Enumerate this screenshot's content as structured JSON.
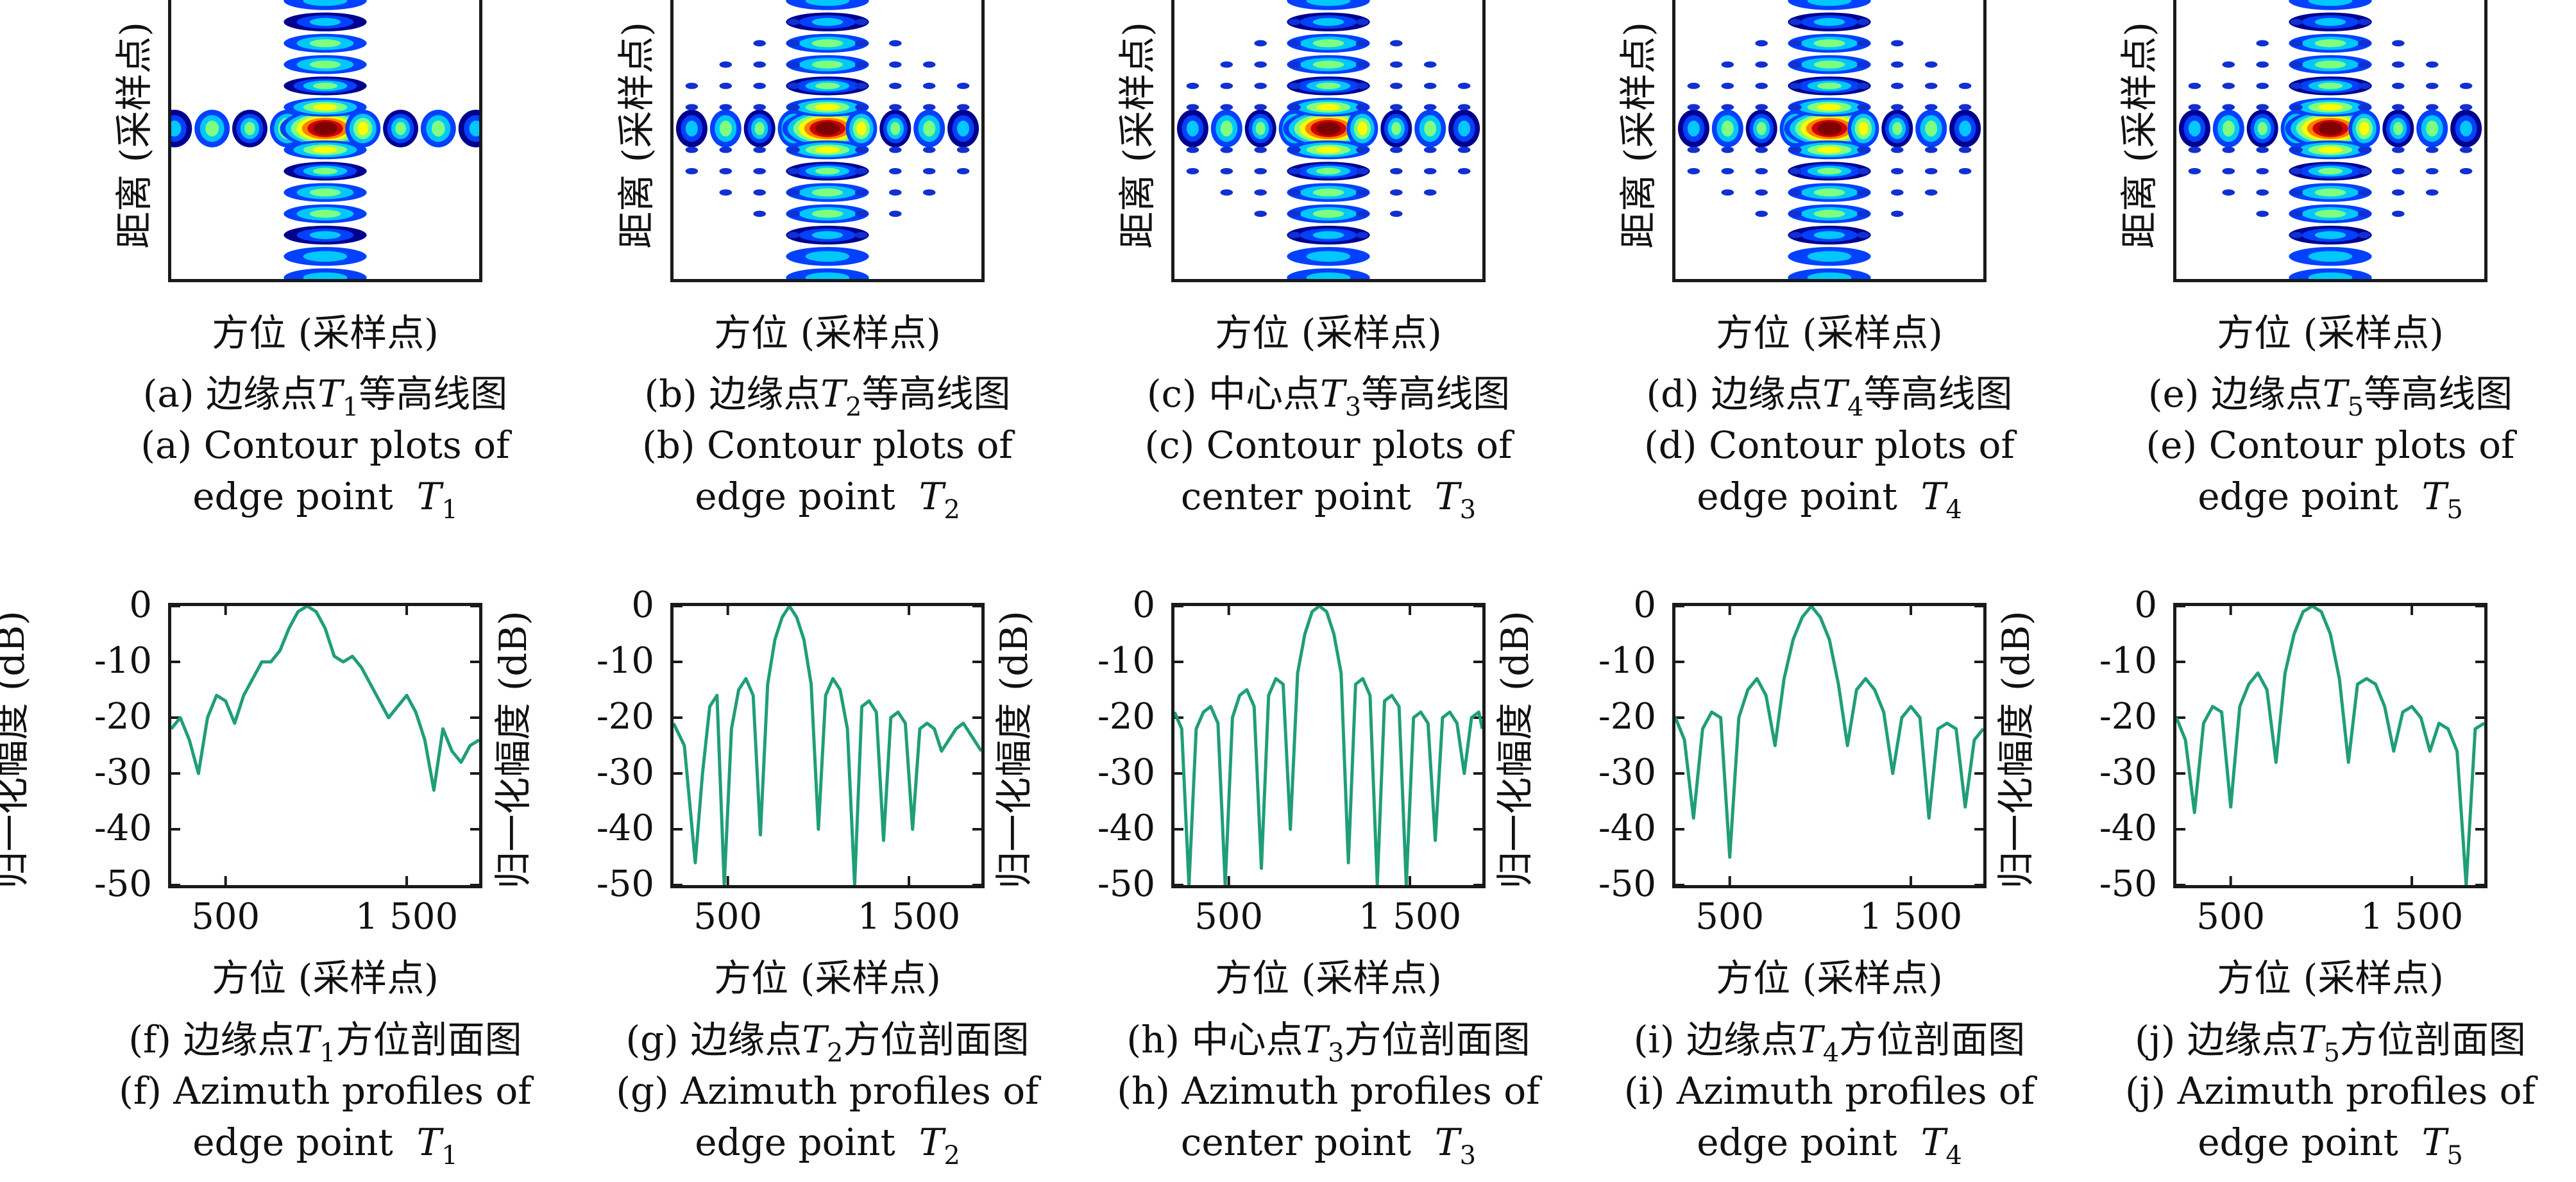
{
  "chart_data": [
    {
      "type": "heatmap",
      "panel": "a",
      "xlabel": "方位 (采样点)",
      "ylabel": "距离 (采样点)",
      "caption_cn": "(a) 边缘点",
      "caption_cn_sym": "T",
      "caption_cn_sub": "1",
      "caption_cn_tail": "等高线图",
      "caption_en_1": "(a) Contour plots of",
      "caption_en_2": "edge point",
      "caption_en_sym": "T",
      "caption_en_sub": "1",
      "colormap": [
        "#00008f",
        "#0040ff",
        "#00c8ff",
        "#7fff7f",
        "#ffff00",
        "#ff7f00",
        "#d00000",
        "#7f0000"
      ]
    },
    {
      "type": "heatmap",
      "panel": "b",
      "xlabel": "方位 (采样点)",
      "ylabel": "距离 (采样点)",
      "caption_cn": "(b) 边缘点",
      "caption_cn_sym": "T",
      "caption_cn_sub": "2",
      "caption_cn_tail": "等高线图",
      "caption_en_1": "(b) Contour plots of",
      "caption_en_2": "edge point",
      "caption_en_sym": "T",
      "caption_en_sub": "2"
    },
    {
      "type": "heatmap",
      "panel": "c",
      "xlabel": "方位 (采样点)",
      "ylabel": "距离 (采样点)",
      "caption_cn": "(c) 中心点",
      "caption_cn_sym": "T",
      "caption_cn_sub": "3",
      "caption_cn_tail": "等高线图",
      "caption_en_1": "(c) Contour plots of",
      "caption_en_2": "center point",
      "caption_en_sym": "T",
      "caption_en_sub": "3"
    },
    {
      "type": "heatmap",
      "panel": "d",
      "xlabel": "方位 (采样点)",
      "ylabel": "距离 (采样点)",
      "caption_cn": "(d) 边缘点",
      "caption_cn_sym": "T",
      "caption_cn_sub": "4",
      "caption_cn_tail": "等高线图",
      "caption_en_1": "(d) Contour plots of",
      "caption_en_2": "edge point",
      "caption_en_sym": "T",
      "caption_en_sub": "4"
    },
    {
      "type": "heatmap",
      "panel": "e",
      "xlabel": "方位 (采样点)",
      "ylabel": "距离 (采样点)",
      "caption_cn": "(e) 边缘点",
      "caption_cn_sym": "T",
      "caption_cn_sub": "5",
      "caption_cn_tail": "等高线图",
      "caption_en_1": "(e) Contour plots of",
      "caption_en_2": "edge point",
      "caption_en_sym": "T",
      "caption_en_sub": "5"
    },
    {
      "type": "line",
      "panel": "f",
      "xlabel": "方位 (采样点)",
      "ylabel": "归一化幅度 (dB)",
      "xlim": [
        200,
        1900
      ],
      "ylim": [
        -50,
        0
      ],
      "xticks": [
        500,
        1500
      ],
      "xtick_labels": [
        "500",
        "1 500"
      ],
      "yticks": [
        0,
        -10,
        -20,
        -30,
        -40,
        -50
      ],
      "line_color": "#1f9e78",
      "caption_cn": "(f) 边缘点",
      "caption_cn_sym": "T",
      "caption_cn_sub": "1",
      "caption_cn_tail": "方位剖面图",
      "caption_en_1": "(f) Azimuth profiles of",
      "caption_en_2": "edge point",
      "caption_en_sym": "T",
      "caption_en_sub": "1",
      "x": [
        200,
        250,
        300,
        350,
        400,
        450,
        500,
        550,
        600,
        650,
        700,
        750,
        800,
        850,
        900,
        950,
        1000,
        1050,
        1100,
        1150,
        1200,
        1250,
        1300,
        1350,
        1400,
        1450,
        1500,
        1550,
        1600,
        1650,
        1700,
        1750,
        1800,
        1850,
        1900
      ],
      "y": [
        -22,
        -20,
        -24,
        -30,
        -20,
        -16,
        -17,
        -21,
        -16,
        -13,
        -10,
        -10,
        -8,
        -4,
        -1,
        0,
        -1,
        -4,
        -9,
        -10,
        -9,
        -11,
        -14,
        -17,
        -20,
        -18,
        -16,
        -19,
        -24,
        -33,
        -22,
        -26,
        -28,
        -25,
        -24
      ]
    },
    {
      "type": "line",
      "panel": "g",
      "xlabel": "方位 (采样点)",
      "ylabel": "归一化幅度 (dB)",
      "xlim": [
        200,
        1900
      ],
      "ylim": [
        -50,
        0
      ],
      "xticks": [
        500,
        1500
      ],
      "xtick_labels": [
        "500",
        "1 500"
      ],
      "yticks": [
        0,
        -10,
        -20,
        -30,
        -40,
        -50
      ],
      "line_color": "#1f9e78",
      "caption_cn": "(g) 边缘点",
      "caption_cn_sym": "T",
      "caption_cn_sub": "2",
      "caption_cn_tail": "方位剖面图",
      "caption_en_1": "(g) Azimuth profiles of",
      "caption_en_2": "edge point",
      "caption_en_sym": "T",
      "caption_en_sub": "2",
      "x": [
        200,
        260,
        320,
        360,
        400,
        440,
        480,
        520,
        560,
        600,
        640,
        680,
        720,
        760,
        800,
        840,
        880,
        920,
        960,
        1000,
        1040,
        1080,
        1120,
        1160,
        1200,
        1240,
        1280,
        1320,
        1360,
        1400,
        1440,
        1480,
        1520,
        1560,
        1600,
        1640,
        1680,
        1720,
        1760,
        1800,
        1840,
        1900
      ],
      "y": [
        -21,
        -25,
        -46,
        -30,
        -18,
        -16,
        -50,
        -22,
        -15,
        -13,
        -16,
        -41,
        -14,
        -6,
        -2,
        0,
        -2,
        -6,
        -14,
        -40,
        -16,
        -13,
        -15,
        -22,
        -50,
        -18,
        -17,
        -19,
        -42,
        -20,
        -19,
        -21,
        -40,
        -22,
        -21,
        -22,
        -26,
        -24,
        -22,
        -21,
        -23,
        -26
      ]
    },
    {
      "type": "line",
      "panel": "h",
      "xlabel": "方位 (采样点)",
      "ylabel": "归一化幅度 (dB)",
      "xlim": [
        200,
        1900
      ],
      "ylim": [
        -50,
        0
      ],
      "xticks": [
        500,
        1500
      ],
      "xtick_labels": [
        "500",
        "1 500"
      ],
      "yticks": [
        0,
        -10,
        -20,
        -30,
        -40,
        -50
      ],
      "line_color": "#1f9e78",
      "caption_cn": "(h) 中心点",
      "caption_cn_sym": "T",
      "caption_cn_sub": "3",
      "caption_cn_tail": "方位剖面图",
      "caption_en_1": "(h) Azimuth profiles of",
      "caption_en_2": "center point",
      "caption_en_sym": "T",
      "caption_en_sub": "3",
      "x": [
        200,
        240,
        280,
        320,
        360,
        400,
        440,
        480,
        520,
        560,
        600,
        640,
        680,
        720,
        760,
        800,
        840,
        880,
        920,
        960,
        1000,
        1040,
        1080,
        1120,
        1160,
        1200,
        1240,
        1280,
        1320,
        1360,
        1400,
        1440,
        1480,
        1520,
        1560,
        1600,
        1640,
        1680,
        1720,
        1760,
        1800,
        1840,
        1880,
        1900
      ],
      "y": [
        -19,
        -22,
        -50,
        -22,
        -19,
        -18,
        -21,
        -50,
        -20,
        -16,
        -15,
        -18,
        -47,
        -16,
        -13,
        -14,
        -40,
        -12,
        -5,
        -1,
        0,
        -1,
        -5,
        -12,
        -46,
        -14,
        -13,
        -16,
        -50,
        -17,
        -16,
        -18,
        -50,
        -20,
        -19,
        -21,
        -42,
        -20,
        -19,
        -21,
        -30,
        -20,
        -19,
        -22
      ]
    },
    {
      "type": "line",
      "panel": "i",
      "xlabel": "方位 (采样点)",
      "ylabel": "归一化幅度 (dB)",
      "xlim": [
        200,
        1900
      ],
      "ylim": [
        -50,
        0
      ],
      "xticks": [
        500,
        1500
      ],
      "xtick_labels": [
        "500",
        "1 500"
      ],
      "yticks": [
        0,
        -10,
        -20,
        -30,
        -40,
        -50
      ],
      "line_color": "#1f9e78",
      "caption_cn": "(i) 边缘点",
      "caption_cn_sym": "T",
      "caption_cn_sub": "4",
      "caption_cn_tail": "方位剖面图",
      "caption_en_1": "(i) Azimuth profiles of",
      "caption_en_2": "edge point",
      "caption_en_sym": "T",
      "caption_en_sub": "4",
      "x": [
        200,
        250,
        300,
        350,
        400,
        450,
        500,
        550,
        600,
        650,
        700,
        750,
        800,
        850,
        900,
        950,
        1000,
        1050,
        1100,
        1150,
        1200,
        1250,
        1300,
        1350,
        1400,
        1450,
        1500,
        1550,
        1600,
        1650,
        1700,
        1750,
        1800,
        1850,
        1900
      ],
      "y": [
        -20,
        -24,
        -38,
        -22,
        -19,
        -20,
        -45,
        -20,
        -15,
        -13,
        -16,
        -25,
        -13,
        -6,
        -2,
        0,
        -2,
        -6,
        -14,
        -25,
        -15,
        -13,
        -15,
        -19,
        -30,
        -20,
        -18,
        -20,
        -38,
        -22,
        -21,
        -22,
        -36,
        -24,
        -22
      ]
    },
    {
      "type": "line",
      "panel": "j",
      "xlabel": "方位 (采样点)",
      "ylabel": "归一化幅度 (dB)",
      "xlim": [
        200,
        1900
      ],
      "ylim": [
        -50,
        0
      ],
      "xticks": [
        500,
        1500
      ],
      "xtick_labels": [
        "500",
        "1 500"
      ],
      "yticks": [
        0,
        -10,
        -20,
        -30,
        -40,
        -50
      ],
      "line_color": "#1f9e78",
      "caption_cn": "(j) 边缘点",
      "caption_cn_sym": "T",
      "caption_cn_sub": "5",
      "caption_cn_tail": "方位剖面图",
      "caption_en_1": "(j) Azimuth profiles of",
      "caption_en_2": "edge point",
      "caption_en_sym": "T",
      "caption_en_sub": "5",
      "x": [
        200,
        250,
        300,
        350,
        400,
        450,
        500,
        550,
        600,
        650,
        700,
        750,
        800,
        850,
        900,
        950,
        1000,
        1050,
        1100,
        1150,
        1200,
        1250,
        1300,
        1350,
        1400,
        1450,
        1500,
        1550,
        1600,
        1650,
        1700,
        1750,
        1800,
        1850,
        1900
      ],
      "y": [
        -20,
        -24,
        -37,
        -21,
        -18,
        -19,
        -36,
        -18,
        -14,
        -12,
        -15,
        -28,
        -12,
        -5,
        -1,
        0,
        -1,
        -5,
        -13,
        -28,
        -14,
        -13,
        -14,
        -18,
        -26,
        -19,
        -18,
        -20,
        -26,
        -21,
        -22,
        -26,
        -50,
        -22,
        -21
      ]
    }
  ]
}
